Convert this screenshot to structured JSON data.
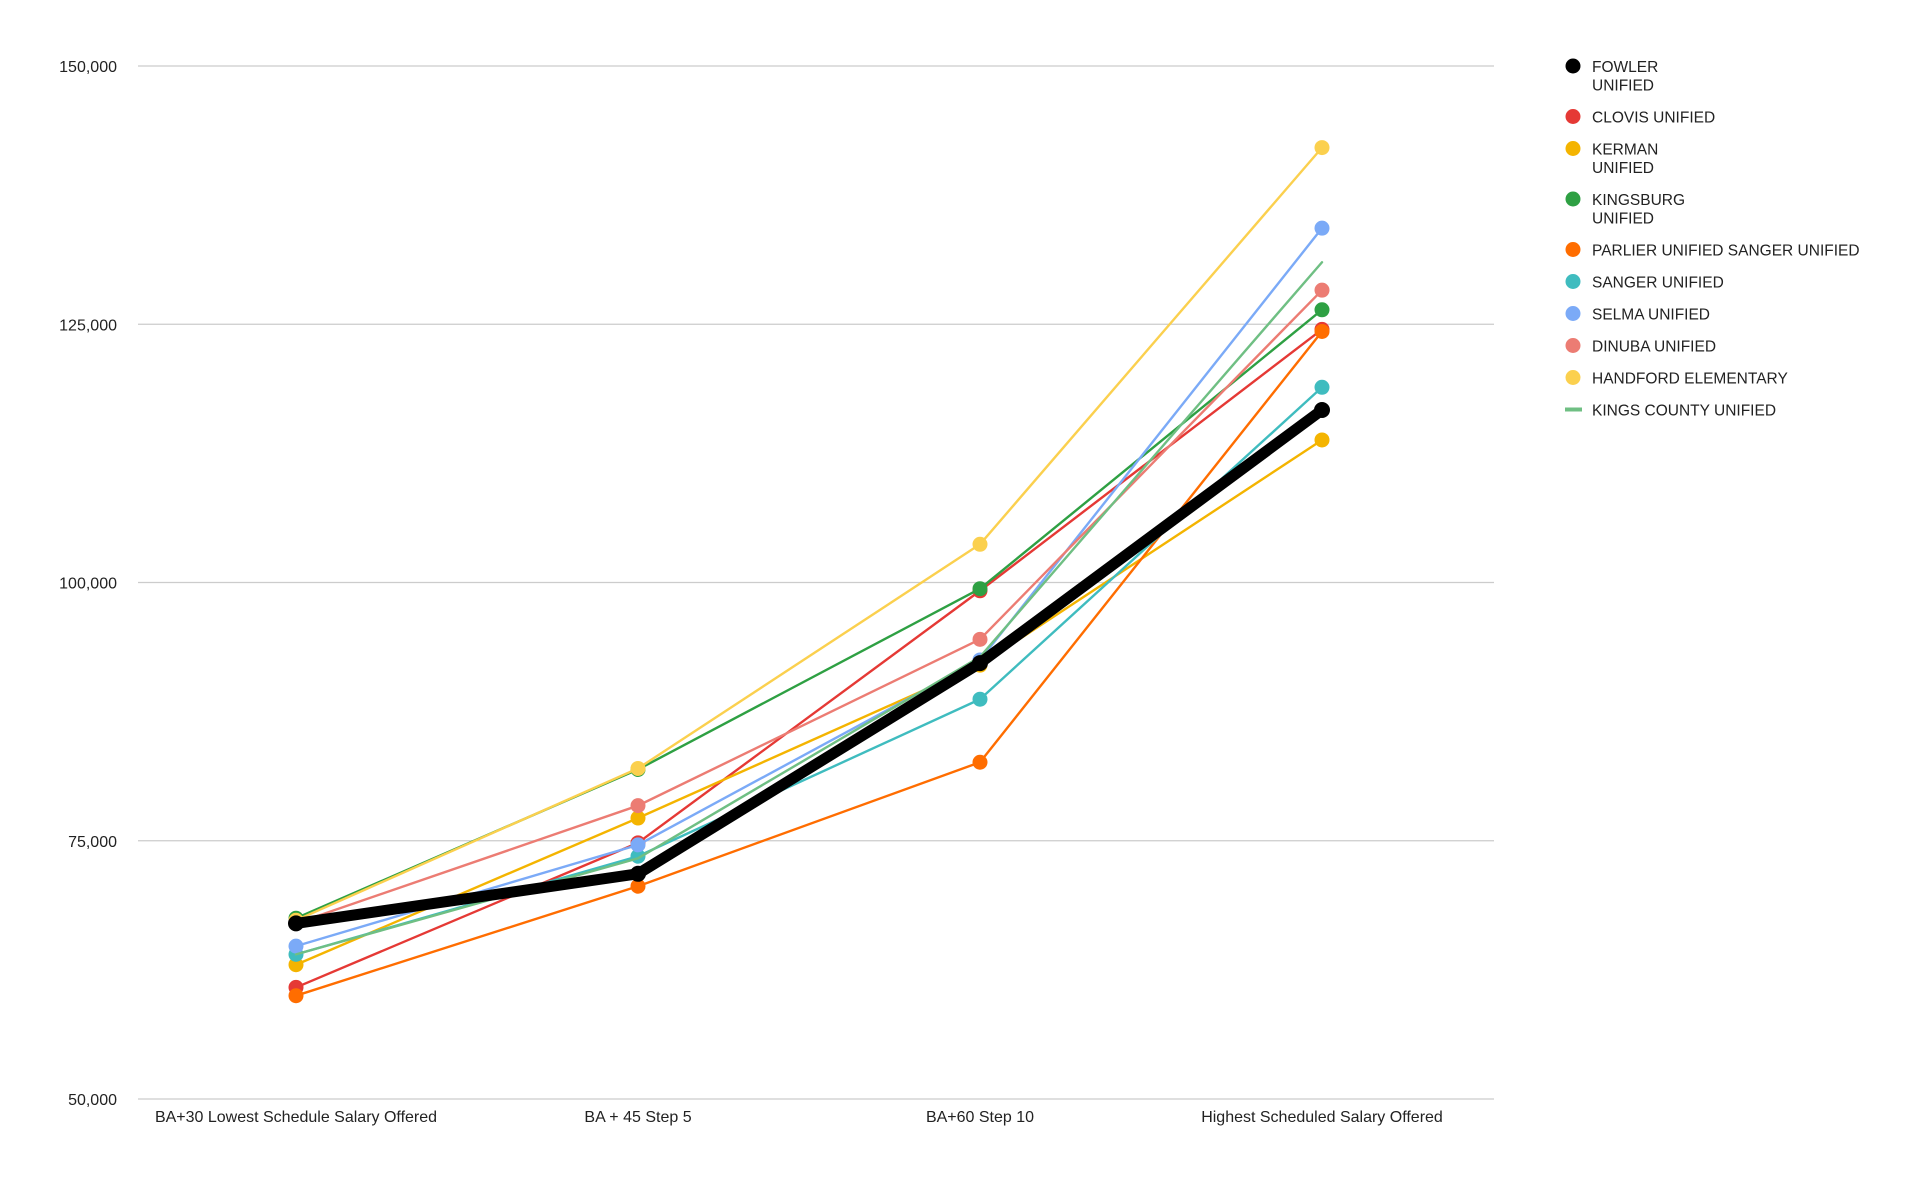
{
  "chart_data": {
    "type": "line",
    "title": "",
    "xlabel": "",
    "ylabel": "",
    "categories": [
      "BA+30 Lowest Schedule Salary Offered",
      "BA + 45 Step 5",
      "BA+60 Step 10",
      "Highest Scheduled Salary Offered"
    ],
    "ylim": [
      50000,
      150000
    ],
    "yticks": [
      50000,
      75000,
      100000,
      125000,
      150000
    ],
    "ytick_labels": [
      "50,000",
      "75,000",
      "100,000",
      "125,000",
      "150,000"
    ],
    "grid": true,
    "legend_position": "right",
    "series": [
      {
        "name": "FOWLER UNIFIED",
        "legend_lines": [
          "FOWLER",
          "UNIFIED"
        ],
        "color": "#000000",
        "marker": "dot",
        "emphasis": true,
        "values": [
          67000,
          71800,
          92200,
          116700
        ]
      },
      {
        "name": "CLOVIS UNIFIED",
        "legend_lines": [
          "CLOVIS UNIFIED"
        ],
        "color": "#e53935",
        "marker": "dot",
        "values": [
          60800,
          74800,
          99200,
          124500
        ]
      },
      {
        "name": "KERMAN UNIFIED",
        "legend_lines": [
          "KERMAN",
          "UNIFIED"
        ],
        "color": "#f4b400",
        "marker": "dot",
        "values": [
          63000,
          77200,
          92000,
          113800
        ]
      },
      {
        "name": "KINGSBURG UNIFIED",
        "legend_lines": [
          "KINGSBURG",
          "UNIFIED"
        ],
        "color": "#2ea043",
        "marker": "dot",
        "values": [
          67500,
          81900,
          99400,
          126400
        ]
      },
      {
        "name": "PARLIER UNIFIED SANGER UNIFIED",
        "legend_lines": [
          "PARLIER UNIFIED SANGER UNIFIED"
        ],
        "color": "#ff6d00",
        "marker": "dot",
        "values": [
          60000,
          70600,
          82600,
          124300
        ]
      },
      {
        "name": "SANGER UNIFIED",
        "legend_lines": [
          "SANGER UNIFIED"
        ],
        "color": "#3fbcbf",
        "marker": "dot",
        "values": [
          64000,
          73500,
          88700,
          118900
        ]
      },
      {
        "name": "SELMA UNIFIED",
        "legend_lines": [
          "SELMA UNIFIED"
        ],
        "color": "#7baaf7",
        "marker": "dot",
        "values": [
          64800,
          74600,
          92500,
          134300
        ]
      },
      {
        "name": "DINUBA UNIFIED",
        "legend_lines": [
          "DINUBA UNIFIED"
        ],
        "color": "#ec7c73",
        "marker": "dot",
        "values": [
          67000,
          78400,
          94500,
          128300
        ]
      },
      {
        "name": "HANDFORD ELEMENTARY",
        "legend_lines": [
          "HANDFORD ELEMENTARY"
        ],
        "color": "#fbd04e",
        "marker": "dot",
        "values": [
          67300,
          82000,
          103700,
          142100
        ]
      },
      {
        "name": "KINGS COUNTY UNIFIED",
        "legend_lines": [
          "KINGS COUNTY UNIFIED"
        ],
        "color": "#6fbf83",
        "marker": "line",
        "values": [
          64000,
          73300,
          92800,
          131000
        ]
      }
    ]
  }
}
